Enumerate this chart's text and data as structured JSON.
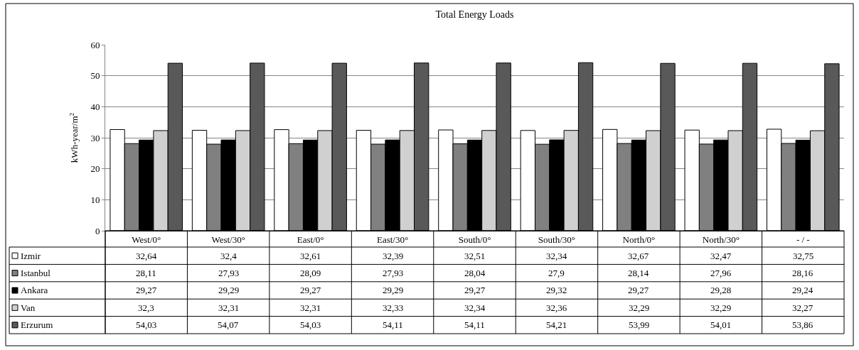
{
  "chart_data": {
    "type": "bar",
    "title": "Total Energy Loads",
    "ylabel": "kWh-year/m$^{2}$",
    "categories": [
      "West/0°",
      "West/30°",
      "East/0°",
      "East/30°",
      "South/0°",
      "South/30°",
      "North/0°",
      "North/30°",
      "- / -"
    ],
    "ylim": [
      0,
      60
    ],
    "yticks": [
      0,
      10,
      20,
      30,
      40,
      50,
      60
    ],
    "grid": "y",
    "legend": "bottom",
    "series": [
      {
        "name": "Izmir",
        "color": "#ffffff",
        "values": [
          32.64,
          32.4,
          32.61,
          32.39,
          32.51,
          32.34,
          32.67,
          32.47,
          32.75
        ],
        "value_labels": [
          "32,64",
          "32,4",
          "32,61",
          "32,39",
          "32,51",
          "32,34",
          "32,67",
          "32,47",
          "32,75"
        ]
      },
      {
        "name": "Istanbul",
        "color": "#808080",
        "values": [
          28.11,
          27.93,
          28.09,
          27.93,
          28.04,
          27.9,
          28.14,
          27.96,
          28.16
        ],
        "value_labels": [
          "28,11",
          "27,93",
          "28,09",
          "27,93",
          "28,04",
          "27,9",
          "28,14",
          "27,96",
          "28,16"
        ]
      },
      {
        "name": "Ankara",
        "color": "#000000",
        "values": [
          29.27,
          29.29,
          29.27,
          29.29,
          29.27,
          29.32,
          29.27,
          29.28,
          29.24
        ],
        "value_labels": [
          "29,27",
          "29,29",
          "29,27",
          "29,29",
          "29,27",
          "29,32",
          "29,27",
          "29,28",
          "29,24"
        ]
      },
      {
        "name": "Van",
        "color": "#d0d0d0",
        "values": [
          32.3,
          32.31,
          32.31,
          32.33,
          32.34,
          32.36,
          32.29,
          32.29,
          32.27
        ],
        "value_labels": [
          "32,3",
          "32,31",
          "32,31",
          "32,33",
          "32,34",
          "32,36",
          "32,29",
          "32,29",
          "32,27"
        ]
      },
      {
        "name": "Erzurum",
        "color": "#595959",
        "values": [
          54.03,
          54.07,
          54.03,
          54.11,
          54.11,
          54.21,
          53.99,
          54.01,
          53.86
        ],
        "value_labels": [
          "54,03",
          "54,07",
          "54,03",
          "54,11",
          "54,11",
          "54,21",
          "53,99",
          "54,01",
          "53,86"
        ]
      }
    ]
  }
}
